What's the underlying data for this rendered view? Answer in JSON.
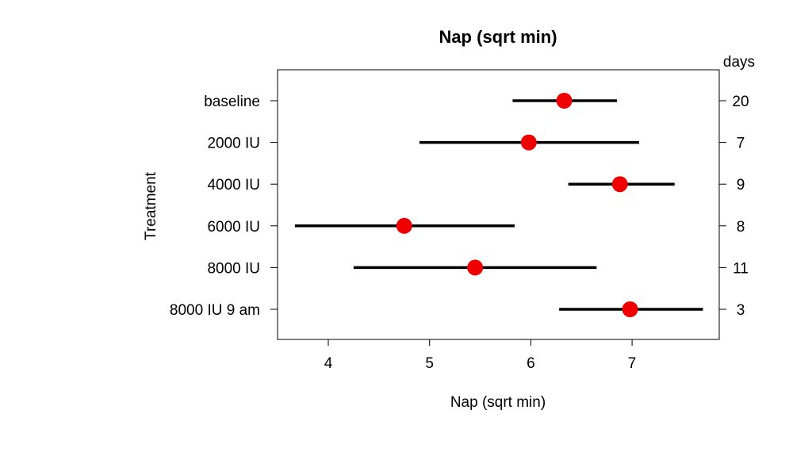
{
  "chart_data": {
    "type": "forest",
    "title": "Nap (sqrt min)",
    "xlabel": "Nap (sqrt min)",
    "ylabel": "Treatment",
    "right_axis_label": "days",
    "xlim": [
      3.5,
      7.85
    ],
    "xticks": [
      4,
      5,
      6,
      7
    ],
    "grid": false,
    "point_color": "#ee0000",
    "categories": [
      "baseline",
      "2000 IU",
      "4000 IU",
      "6000 IU",
      "8000 IU",
      "8000 IU 9 am"
    ],
    "estimates": [
      6.33,
      5.98,
      6.88,
      4.75,
      5.45,
      6.98
    ],
    "lower": [
      5.82,
      4.9,
      6.37,
      3.67,
      4.25,
      6.28
    ],
    "upper": [
      6.85,
      7.07,
      7.42,
      5.84,
      6.65,
      7.7
    ],
    "days": [
      "20",
      "7",
      "9",
      "8",
      "11",
      "3"
    ]
  }
}
